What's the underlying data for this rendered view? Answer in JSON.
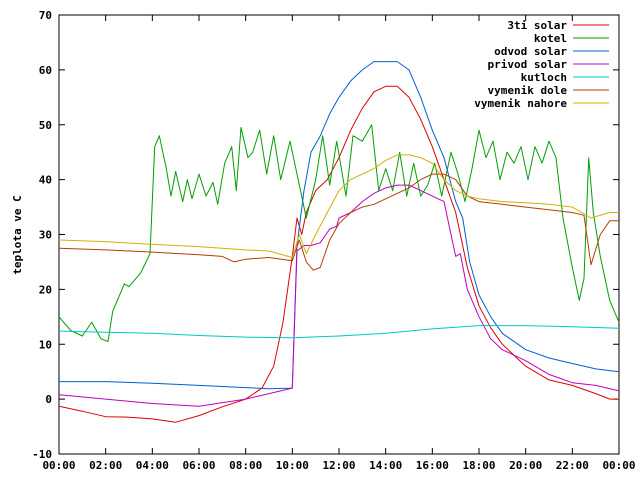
{
  "chart_data": {
    "type": "line",
    "title": "",
    "xlabel": "",
    "ylabel": "teplota ve C",
    "xlim": [
      0,
      24
    ],
    "ylim": [
      -10,
      70
    ],
    "x_tick_labels": [
      "00:00",
      "02:00",
      "04:00",
      "06:00",
      "08:00",
      "10:00",
      "12:00",
      "14:00",
      "16:00",
      "18:00",
      "20:00",
      "22:00",
      "00:00"
    ],
    "y_tick_labels": [
      "-10",
      "0",
      "10",
      "20",
      "30",
      "40",
      "50",
      "60",
      "70"
    ],
    "legend_position": "top-right",
    "grid": false,
    "series": [
      {
        "name": "3ti solar",
        "color": "#e00000",
        "points": [
          [
            0,
            -1.3
          ],
          [
            1,
            -2.2
          ],
          [
            2,
            -3.2
          ],
          [
            3,
            -3.3
          ],
          [
            4,
            -3.6
          ],
          [
            5,
            -4.2
          ],
          [
            6,
            -3
          ],
          [
            7,
            -1.4
          ],
          [
            8,
            0
          ],
          [
            8.7,
            2
          ],
          [
            9.2,
            6
          ],
          [
            9.6,
            14
          ],
          [
            10,
            26
          ],
          [
            10.2,
            33
          ],
          [
            10.4,
            30
          ],
          [
            10.6,
            34
          ],
          [
            11,
            38
          ],
          [
            11.5,
            40
          ],
          [
            12,
            44
          ],
          [
            12.5,
            49
          ],
          [
            13,
            53
          ],
          [
            13.5,
            56
          ],
          [
            14,
            57
          ],
          [
            14.5,
            57
          ],
          [
            15,
            55
          ],
          [
            15.5,
            51
          ],
          [
            16,
            46
          ],
          [
            16.5,
            40
          ],
          [
            17,
            34
          ],
          [
            17.5,
            24
          ],
          [
            18,
            17
          ],
          [
            18.5,
            13
          ],
          [
            19,
            10
          ],
          [
            20,
            6
          ],
          [
            21,
            3.5
          ],
          [
            22,
            2.5
          ],
          [
            23,
            1
          ],
          [
            23.6,
            0
          ],
          [
            24,
            0
          ]
        ]
      },
      {
        "name": "kotel",
        "color": "#00a000",
        "points": [
          [
            0,
            15
          ],
          [
            0.5,
            12.5
          ],
          [
            1,
            11.5
          ],
          [
            1.4,
            14
          ],
          [
            1.8,
            11
          ],
          [
            2.1,
            10.5
          ],
          [
            2.3,
            16
          ],
          [
            2.8,
            21
          ],
          [
            3,
            20.5
          ],
          [
            3.5,
            23
          ],
          [
            3.9,
            26.5
          ],
          [
            4.1,
            46
          ],
          [
            4.3,
            48
          ],
          [
            4.6,
            42
          ],
          [
            4.8,
            37
          ],
          [
            5,
            41.5
          ],
          [
            5.3,
            36
          ],
          [
            5.5,
            40
          ],
          [
            5.7,
            36.5
          ],
          [
            6,
            41
          ],
          [
            6.3,
            37
          ],
          [
            6.6,
            39.5
          ],
          [
            6.8,
            35.5
          ],
          [
            7.1,
            43
          ],
          [
            7.4,
            46
          ],
          [
            7.6,
            38
          ],
          [
            7.8,
            49.5
          ],
          [
            8.1,
            44
          ],
          [
            8.3,
            45
          ],
          [
            8.6,
            49
          ],
          [
            8.9,
            41
          ],
          [
            9.2,
            48
          ],
          [
            9.5,
            40
          ],
          [
            9.9,
            47
          ],
          [
            10.2,
            41
          ],
          [
            10.6,
            33
          ],
          [
            11,
            40
          ],
          [
            11.3,
            48
          ],
          [
            11.6,
            39
          ],
          [
            11.9,
            47
          ],
          [
            12.3,
            37
          ],
          [
            12.6,
            48
          ],
          [
            13,
            47
          ],
          [
            13.4,
            50
          ],
          [
            13.7,
            38
          ],
          [
            14,
            42
          ],
          [
            14.3,
            38
          ],
          [
            14.6,
            45
          ],
          [
            14.9,
            37
          ],
          [
            15.2,
            43
          ],
          [
            15.5,
            37
          ],
          [
            15.8,
            39
          ],
          [
            16.1,
            43
          ],
          [
            16.4,
            37
          ],
          [
            16.8,
            45
          ],
          [
            17.1,
            41
          ],
          [
            17.4,
            36
          ],
          [
            17.7,
            42
          ],
          [
            18,
            49
          ],
          [
            18.3,
            44
          ],
          [
            18.6,
            47
          ],
          [
            18.9,
            40
          ],
          [
            19.2,
            45
          ],
          [
            19.5,
            43
          ],
          [
            19.8,
            46
          ],
          [
            20.1,
            40
          ],
          [
            20.4,
            46
          ],
          [
            20.7,
            43
          ],
          [
            21,
            47
          ],
          [
            21.3,
            44
          ],
          [
            21.6,
            33
          ],
          [
            22,
            24
          ],
          [
            22.3,
            18
          ],
          [
            22.5,
            22
          ],
          [
            22.7,
            44
          ],
          [
            22.9,
            34
          ],
          [
            23.2,
            26
          ],
          [
            23.6,
            18
          ],
          [
            24,
            14
          ]
        ]
      },
      {
        "name": "odvod solar",
        "color": "#0060d0",
        "points": [
          [
            0,
            3.2
          ],
          [
            2,
            3.2
          ],
          [
            4,
            2.9
          ],
          [
            6,
            2.5
          ],
          [
            8,
            2.1
          ],
          [
            9,
            1.9
          ],
          [
            10,
            2
          ],
          [
            10.2,
            28
          ],
          [
            10.5,
            38
          ],
          [
            10.8,
            45
          ],
          [
            11.2,
            48
          ],
          [
            11.6,
            52
          ],
          [
            12,
            55
          ],
          [
            12.5,
            58
          ],
          [
            13,
            60
          ],
          [
            13.5,
            61.5
          ],
          [
            14,
            61.5
          ],
          [
            14.5,
            61.5
          ],
          [
            15,
            60
          ],
          [
            15.5,
            55
          ],
          [
            16,
            49
          ],
          [
            16.5,
            44
          ],
          [
            17,
            36
          ],
          [
            17.3,
            33
          ],
          [
            17.6,
            25
          ],
          [
            18,
            19
          ],
          [
            18.5,
            15
          ],
          [
            19,
            12
          ],
          [
            20,
            9
          ],
          [
            21,
            7.5
          ],
          [
            22,
            6.5
          ],
          [
            23,
            5.5
          ],
          [
            24,
            5
          ]
        ]
      },
      {
        "name": "privod solar",
        "color": "#c000c0",
        "points": [
          [
            0,
            0.8
          ],
          [
            2,
            0
          ],
          [
            4,
            -0.8
          ],
          [
            6,
            -1.3
          ],
          [
            8,
            0
          ],
          [
            9,
            1
          ],
          [
            10,
            2
          ],
          [
            10.2,
            27
          ],
          [
            10.5,
            28
          ],
          [
            10.8,
            28
          ],
          [
            11.2,
            28.5
          ],
          [
            11.6,
            31
          ],
          [
            11.9,
            31.5
          ],
          [
            12,
            33
          ],
          [
            12.5,
            34
          ],
          [
            13,
            36
          ],
          [
            13.5,
            37.5
          ],
          [
            14,
            38.5
          ],
          [
            14.5,
            39
          ],
          [
            15,
            39
          ],
          [
            15.5,
            38
          ],
          [
            16,
            37
          ],
          [
            16.5,
            36
          ],
          [
            16.8,
            30
          ],
          [
            17,
            26
          ],
          [
            17.2,
            26.5
          ],
          [
            17.5,
            20
          ],
          [
            18,
            15
          ],
          [
            18.5,
            11
          ],
          [
            19,
            9
          ],
          [
            20,
            7
          ],
          [
            21,
            4.5
          ],
          [
            22,
            3
          ],
          [
            23,
            2.5
          ],
          [
            24,
            1.5
          ]
        ]
      },
      {
        "name": "kutloch",
        "color": "#00c8c8",
        "points": [
          [
            0,
            12.4
          ],
          [
            2,
            12.2
          ],
          [
            4,
            12
          ],
          [
            6,
            11.6
          ],
          [
            8,
            11.3
          ],
          [
            10,
            11.2
          ],
          [
            12,
            11.5
          ],
          [
            14,
            12
          ],
          [
            16,
            12.8
          ],
          [
            18,
            13.4
          ],
          [
            20,
            13.4
          ],
          [
            22,
            13.2
          ],
          [
            24,
            12.9
          ]
        ]
      },
      {
        "name": "vymenik dole",
        "color": "#b04000",
        "points": [
          [
            0,
            27.5
          ],
          [
            2,
            27.2
          ],
          [
            4,
            26.8
          ],
          [
            6,
            26.3
          ],
          [
            7,
            26
          ],
          [
            7.5,
            25
          ],
          [
            8,
            25.5
          ],
          [
            9,
            25.8
          ],
          [
            10,
            25.2
          ],
          [
            10.3,
            29
          ],
          [
            10.6,
            25
          ],
          [
            10.9,
            23.5
          ],
          [
            11.2,
            24
          ],
          [
            11.6,
            29
          ],
          [
            12,
            32
          ],
          [
            12.5,
            34
          ],
          [
            13,
            35
          ],
          [
            13.5,
            35.5
          ],
          [
            14,
            36.5
          ],
          [
            14.5,
            37.5
          ],
          [
            15,
            38.5
          ],
          [
            15.5,
            40
          ],
          [
            16,
            41
          ],
          [
            16.5,
            41
          ],
          [
            17,
            40
          ],
          [
            17.5,
            37
          ],
          [
            18,
            36
          ],
          [
            19,
            35.5
          ],
          [
            20,
            35
          ],
          [
            21,
            34.5
          ],
          [
            22,
            34
          ],
          [
            22.5,
            33.5
          ],
          [
            22.8,
            24.5
          ],
          [
            23.2,
            30
          ],
          [
            23.6,
            32.5
          ],
          [
            24,
            32.5
          ]
        ]
      },
      {
        "name": "vymenik nahore",
        "color": "#d0b000",
        "points": [
          [
            0,
            29
          ],
          [
            2,
            28.7
          ],
          [
            4,
            28.2
          ],
          [
            6,
            27.8
          ],
          [
            8,
            27.2
          ],
          [
            9,
            27
          ],
          [
            10,
            25.8
          ],
          [
            10.3,
            30
          ],
          [
            10.6,
            26.5
          ],
          [
            11,
            30
          ],
          [
            11.5,
            34
          ],
          [
            12,
            38
          ],
          [
            12.5,
            40
          ],
          [
            13,
            41
          ],
          [
            13.5,
            42
          ],
          [
            14,
            43.5
          ],
          [
            14.5,
            44.5
          ],
          [
            15,
            44.5
          ],
          [
            15.5,
            44
          ],
          [
            16,
            43
          ],
          [
            16.5,
            40
          ],
          [
            17,
            38
          ],
          [
            17.5,
            37
          ],
          [
            18,
            36.5
          ],
          [
            19,
            36
          ],
          [
            20,
            35.8
          ],
          [
            21,
            35.5
          ],
          [
            22,
            35
          ],
          [
            22.8,
            33
          ],
          [
            23.2,
            33.5
          ],
          [
            23.6,
            34
          ],
          [
            24,
            34
          ]
        ]
      }
    ]
  }
}
